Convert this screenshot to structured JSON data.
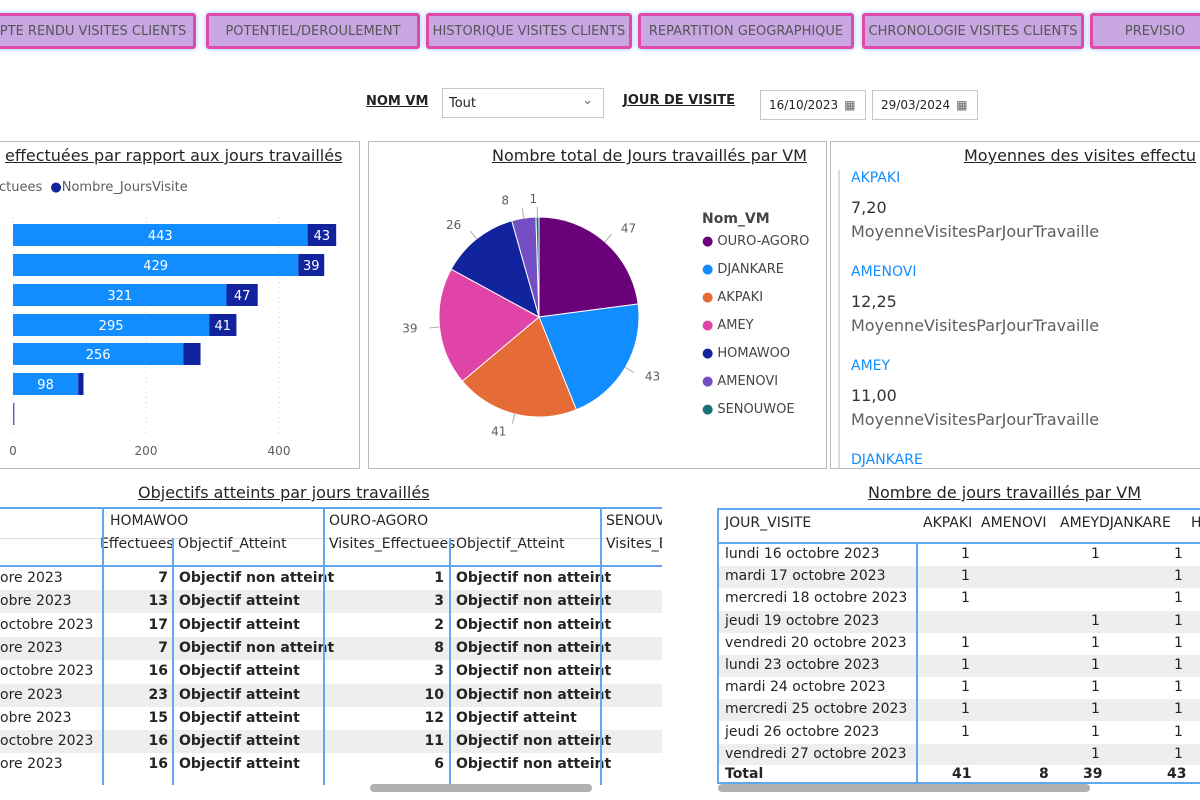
{
  "tabs": [
    "PTE RENDU VISITES CLIENTS",
    "POTENTIEL/DEROULEMENT",
    "HISTORIQUE VISITES CLIENTS",
    "REPARTITION GEOGRAPHIQUE",
    "CHRONOLOGIE VISITES CLIENTS",
    "PREVISIO"
  ],
  "filters": {
    "nom_vm_label": "NOM VM",
    "nom_vm_value": "Tout",
    "jour_label": "JOUR DE VISITE",
    "date_start": "16/10/2023",
    "date_end": "29/03/2024"
  },
  "colors": {
    "OURO-AGORO": "#6B007B",
    "DJANKARE": "#118DFF",
    "AKPAKI": "#E66C37",
    "AMEY": "#E044A7",
    "HOMAWOO": "#12239E",
    "AMENOVI": "#744EC2",
    "SENOUWOE": "#197278"
  },
  "chart_data": [
    {
      "type": "bar",
      "title": "effectuées par rapport aux jours travaillés",
      "legend": [
        "ctuees",
        "Nombre_JoursVisite"
      ],
      "xticks": [
        "0",
        "200",
        "400"
      ],
      "xlim": [
        0,
        480
      ],
      "series": [
        {
          "name": "Visites_Effectuees",
          "values": [
            443,
            429,
            321,
            295,
            256,
            98,
            1
          ]
        },
        {
          "name": "Nombre_JoursVisite",
          "values": [
            43,
            39,
            47,
            41,
            26,
            8,
            1
          ]
        }
      ],
      "labels": [
        [
          "443",
          "43"
        ],
        [
          "429",
          "39"
        ],
        [
          "321",
          "47"
        ],
        [
          "295",
          "41"
        ],
        [
          "256",
          ""
        ],
        [
          "98",
          ""
        ],
        [
          "",
          ""
        ]
      ]
    },
    {
      "type": "pie",
      "title": "Nombre total de Jours travaillés par VM",
      "legend_title": "Nom_VM",
      "categories": [
        "OURO-AGORO",
        "DJANKARE",
        "AKPAKI",
        "AMEY",
        "HOMAWOO",
        "AMENOVI",
        "SENOUWOE"
      ],
      "values": [
        47,
        43,
        41,
        39,
        26,
        8,
        1
      ],
      "legend_position": "right"
    }
  ],
  "moyennes": {
    "title": "Moyennes des visites effectu",
    "items": [
      {
        "name": "AKPAKI",
        "value": "7,20",
        "measure": "MoyenneVisitesParJourTravaille"
      },
      {
        "name": "AMENOVI",
        "value": "12,25",
        "measure": "MoyenneVisitesParJourTravaille"
      },
      {
        "name": "AMEY",
        "value": "11,00",
        "measure": "MoyenneVisitesParJourTravaille"
      },
      {
        "name": "DJANKARE",
        "value": "",
        "measure": ""
      }
    ]
  },
  "objectifs": {
    "title": "Objectifs atteints par jours travaillés",
    "groups": [
      "HOMAWOO",
      "OURO-AGORO",
      "SENOUV"
    ],
    "subheaders": [
      "Effectuees",
      "Objectif_Atteint",
      "Visites_Effectuees",
      "Objectif_Atteint",
      "Visites_E"
    ],
    "rows": [
      [
        "ore 2023",
        "7",
        "Objectif non atteint",
        "1",
        "Objectif non atteint"
      ],
      [
        "obre 2023",
        "13",
        "Objectif atteint",
        "3",
        "Objectif non atteint"
      ],
      [
        "octobre 2023",
        "17",
        "Objectif atteint",
        "2",
        "Objectif non atteint"
      ],
      [
        "ore 2023",
        "7",
        "Objectif non atteint",
        "8",
        "Objectif non atteint"
      ],
      [
        "octobre 2023",
        "16",
        "Objectif atteint",
        "3",
        "Objectif non atteint"
      ],
      [
        "ore 2023",
        "23",
        "Objectif atteint",
        "10",
        "Objectif non atteint"
      ],
      [
        "obre 2023",
        "15",
        "Objectif atteint",
        "12",
        "Objectif atteint"
      ],
      [
        "octobre 2023",
        "16",
        "Objectif atteint",
        "11",
        "Objectif non atteint"
      ],
      [
        "ore 2023",
        "16",
        "Objectif atteint",
        "6",
        "Objectif non atteint"
      ]
    ]
  },
  "jours": {
    "title": "Nombre de jours travaillés par VM",
    "headers": [
      "JOUR_VISITE",
      "AKPAKI",
      "AMENOVI",
      "AMEY",
      "DJANKARE",
      "H"
    ],
    "rows": [
      [
        "lundi 16 octobre 2023",
        "1",
        "",
        "1",
        "1"
      ],
      [
        "mardi 17 octobre 2023",
        "1",
        "",
        "",
        "1"
      ],
      [
        "mercredi 18 octobre 2023",
        "1",
        "",
        "",
        "1"
      ],
      [
        "jeudi 19 octobre 2023",
        "",
        "",
        "1",
        "1"
      ],
      [
        "vendredi 20 octobre 2023",
        "1",
        "",
        "1",
        "1"
      ],
      [
        "lundi 23 octobre 2023",
        "1",
        "",
        "1",
        "1"
      ],
      [
        "mardi 24 octobre 2023",
        "1",
        "",
        "1",
        "1"
      ],
      [
        "mercredi 25 octobre 2023",
        "1",
        "",
        "1",
        "1"
      ],
      [
        "jeudi 26 octobre 2023",
        "1",
        "",
        "1",
        "1"
      ],
      [
        "vendredi 27 octobre 2023",
        "",
        "",
        "1",
        "1"
      ]
    ],
    "total": [
      "Total",
      "41",
      "8",
      "39",
      "43"
    ]
  }
}
